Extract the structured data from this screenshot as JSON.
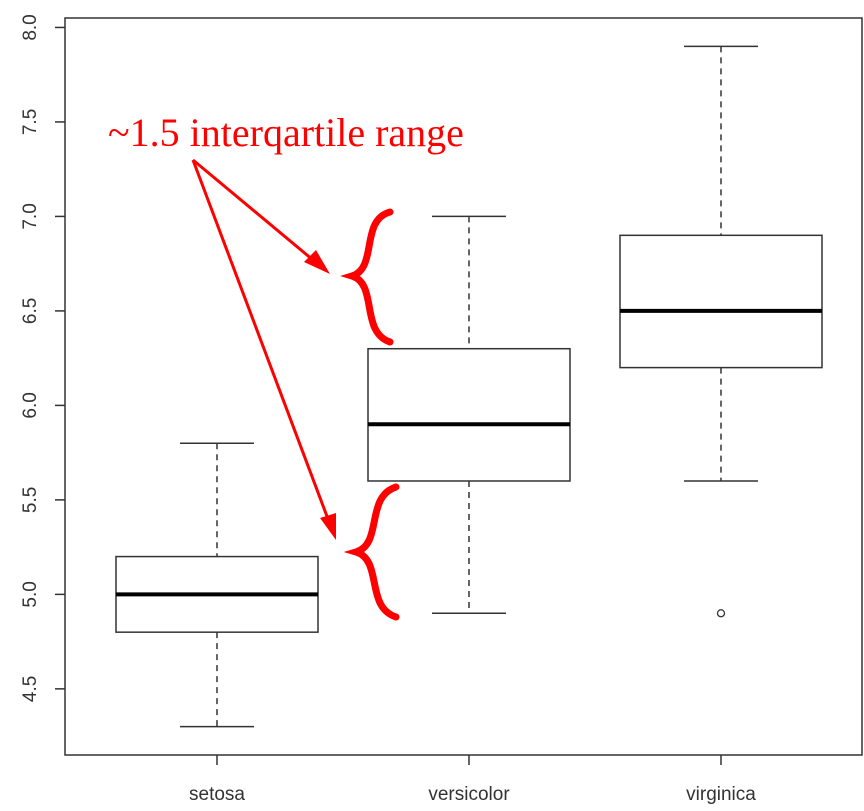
{
  "chart_data": {
    "type": "box",
    "title": "",
    "xlabel": "",
    "ylabel": "",
    "ylim": [
      4.15,
      8.05
    ],
    "yticks": [
      "4.5",
      "5.0",
      "5.5",
      "6.0",
      "6.5",
      "7.0",
      "7.5",
      "8.0"
    ],
    "categories": [
      "setosa",
      "versicolor",
      "virginica"
    ],
    "boxes": [
      {
        "whisker_low": 4.3,
        "q1": 4.8,
        "median": 5.0,
        "q3": 5.2,
        "whisker_high": 5.8,
        "outliers": []
      },
      {
        "whisker_low": 4.9,
        "q1": 5.6,
        "median": 5.9,
        "q3": 6.3,
        "whisker_high": 7.0,
        "outliers": []
      },
      {
        "whisker_low": 5.6,
        "q1": 6.2,
        "median": 6.5,
        "q3": 6.9,
        "whisker_high": 7.9,
        "outliers": [
          4.9
        ]
      }
    ],
    "grid": false,
    "annotation": {
      "text": "~1.5 interqartile range",
      "color": "#ff0000"
    }
  }
}
